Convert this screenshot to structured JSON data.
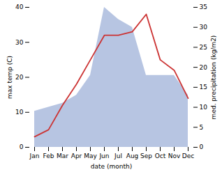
{
  "chart_data": {
    "type": "line",
    "categories": [
      "Jan",
      "Feb",
      "Mar",
      "Apr",
      "May",
      "Jun",
      "Jul",
      "Aug",
      "Sep",
      "Oct",
      "Nov",
      "Dec"
    ],
    "xlabel": "date (month)",
    "ylabel": "max temp (C)",
    "y2label": "med. precipitation (kg/m2)",
    "series": [
      {
        "type": "area",
        "axis": "y2",
        "color": "#aabbdd",
        "values": [
          9,
          10,
          11,
          13,
          18,
          35,
          32,
          30,
          18,
          18,
          18,
          13
        ]
      },
      {
        "type": "line",
        "color": "#cc3333",
        "values": [
          3,
          5,
          12,
          18,
          25,
          32,
          32,
          33,
          38,
          25,
          22,
          14
        ]
      }
    ],
    "ylim": [
      0,
      40
    ],
    "yticks": [
      0,
      10,
      20,
      30,
      40
    ],
    "y2lim": [
      0,
      35
    ],
    "y2ticks": [
      0,
      5,
      10,
      15,
      20,
      25,
      30,
      35
    ],
    "grid": false
  }
}
